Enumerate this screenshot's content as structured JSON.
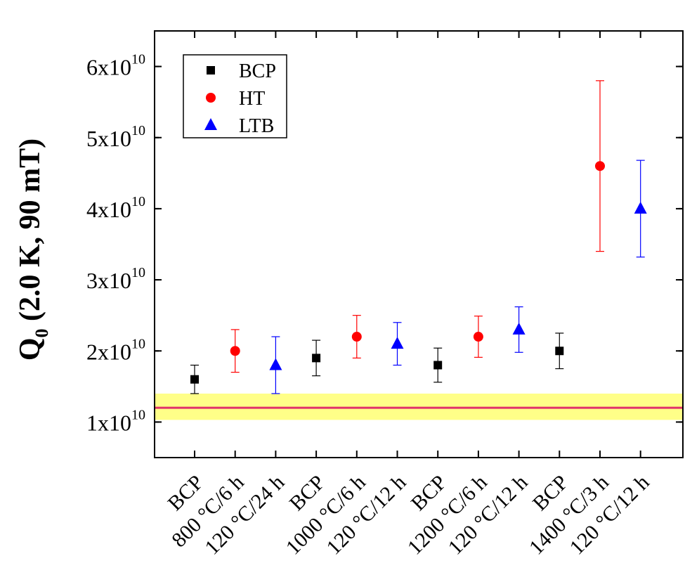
{
  "chart_data": {
    "type": "scatter",
    "ylabel_main": "Q",
    "ylabel_sub": "0",
    "ylabel_rest": " (2.0 K, 90 mT)",
    "ylim": [
      5000000000,
      65000000000
    ],
    "yticks": [
      {
        "value": 10000000000,
        "mant": "1x10",
        "exp": "10"
      },
      {
        "value": 20000000000,
        "mant": "2x10",
        "exp": "10"
      },
      {
        "value": 30000000000,
        "mant": "3x10",
        "exp": "10"
      },
      {
        "value": 40000000000,
        "mant": "4x10",
        "exp": "10"
      },
      {
        "value": 50000000000,
        "mant": "5x10",
        "exp": "10"
      },
      {
        "value": 60000000000,
        "mant": "6x10",
        "exp": "10"
      }
    ],
    "categories": [
      "BCP",
      "800 °C/6 h",
      "120 °C/24 h",
      "BCP",
      "1000 °C/6 h",
      "120 °C/12 h",
      "BCP",
      "1200 °C/6 h",
      "120 °C/12 h",
      "BCP",
      "1400 °C/3 h",
      "120 °C/12 h"
    ],
    "series": [
      {
        "name": "BCP",
        "color": "#000000",
        "marker": "square",
        "points": [
          {
            "x": 0,
            "y": 16000000000,
            "lo": 14000000000,
            "hi": 18000000000
          },
          {
            "x": 3,
            "y": 19000000000,
            "lo": 16500000000,
            "hi": 21500000000
          },
          {
            "x": 6,
            "y": 18000000000,
            "lo": 15600000000,
            "hi": 20400000000
          },
          {
            "x": 9,
            "y": 20000000000,
            "lo": 17500000000,
            "hi": 22500000000
          }
        ]
      },
      {
        "name": "HT",
        "color": "#ff0000",
        "marker": "circle",
        "points": [
          {
            "x": 1,
            "y": 20000000000,
            "lo": 17000000000,
            "hi": 23000000000
          },
          {
            "x": 4,
            "y": 22000000000,
            "lo": 19000000000,
            "hi": 25000000000
          },
          {
            "x": 7,
            "y": 22000000000,
            "lo": 19100000000,
            "hi": 24900000000
          },
          {
            "x": 10,
            "y": 46000000000,
            "lo": 34000000000,
            "hi": 58000000000
          }
        ]
      },
      {
        "name": "LTB",
        "color": "#0000ff",
        "marker": "triangle",
        "points": [
          {
            "x": 2,
            "y": 18000000000,
            "lo": 14000000000,
            "hi": 22000000000
          },
          {
            "x": 5,
            "y": 21000000000,
            "lo": 18000000000,
            "hi": 24000000000
          },
          {
            "x": 8,
            "y": 23000000000,
            "lo": 19800000000,
            "hi": 26200000000
          },
          {
            "x": 11,
            "y": 40000000000,
            "lo": 33200000000,
            "hi": 46800000000
          }
        ]
      }
    ],
    "reference_line": {
      "value": 12000000000,
      "color": "#e0306a"
    },
    "reference_band": {
      "low": 10300000000,
      "high": 14000000000,
      "color": "#ffff88"
    },
    "legend_position": "top-left"
  }
}
